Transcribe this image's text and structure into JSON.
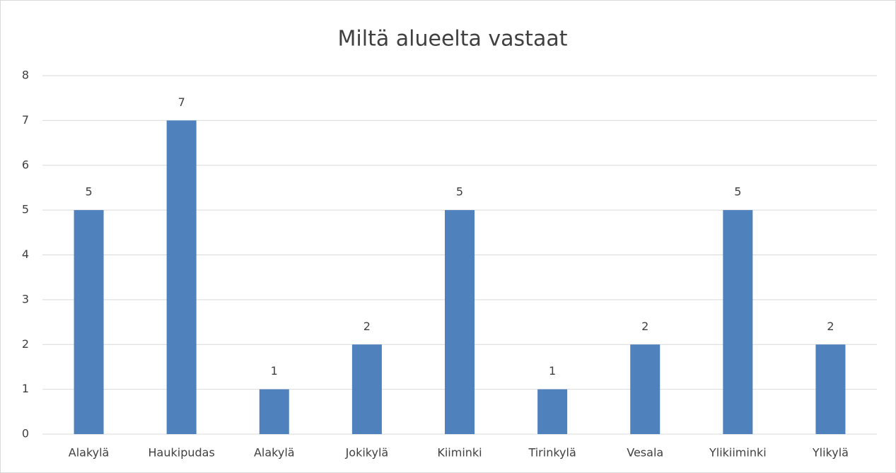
{
  "chart_data": {
    "type": "bar",
    "title": "Miltä alueelta vastaat",
    "categories": [
      "Alakylä",
      "Haukipudas",
      "Alakylä",
      "Jokikylä",
      "Kiiminki",
      "Tirinkylä",
      "Vesala",
      "Ylikiiminki",
      "Ylikylä"
    ],
    "values": [
      5,
      7,
      1,
      2,
      5,
      1,
      2,
      5,
      2
    ],
    "color": "#4f81bd",
    "ylim": [
      0,
      8
    ],
    "yticks": [
      0,
      1,
      2,
      3,
      4,
      5,
      6,
      7,
      8
    ],
    "grid": true
  }
}
